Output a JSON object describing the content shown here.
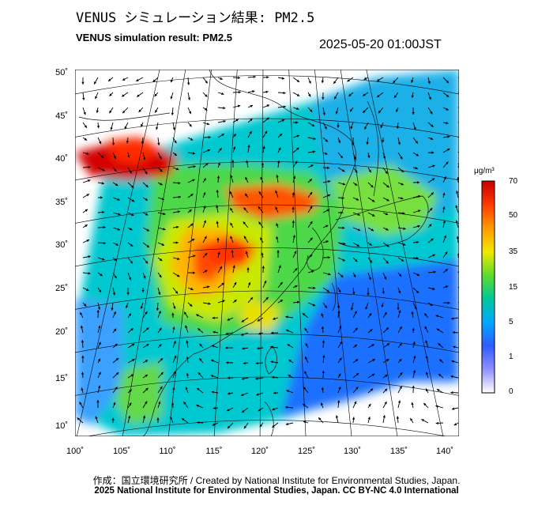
{
  "title_jp": "VENUS シミュレーション結果: PM2.5",
  "title_en": "VENUS simulation result: PM2.5",
  "timestamp": "2025-05-20 01:00JST",
  "lat_labels": [
    "50˚",
    "45˚",
    "40˚",
    "35˚",
    "30˚",
    "25˚",
    "20˚",
    "15˚",
    "10˚"
  ],
  "lon_labels": [
    "100˚",
    "105˚",
    "110˚",
    "115˚",
    "120˚",
    "125˚",
    "130˚",
    "135˚",
    "140˚"
  ],
  "colorbar": {
    "unit": "μg/m³",
    "ticks": [
      "70",
      "50",
      "35",
      "15",
      "5",
      "1",
      "0"
    ],
    "colors": [
      "#c40000",
      "#ff3a00",
      "#ff9a00",
      "#f2e800",
      "#5fdc2c",
      "#00c89a",
      "#00a8ff",
      "#2f5cff",
      "#8f8fff",
      "#ffffff"
    ]
  },
  "credit_line1": "作成：国立環境研究所 / Created by National Institute for Environmental Studies, Japan.",
  "credit_line2": "2025 National Institute for Environmental Studies, Japan. CC BY-NC 4.0 International"
}
